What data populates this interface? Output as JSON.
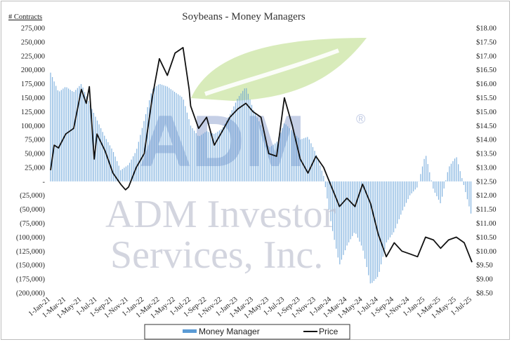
{
  "chart_data": {
    "type": "bar+line",
    "title": "Soybeans - Money Managers",
    "y_left_unit_label": "# Contracts",
    "y_left": {
      "min": -200000,
      "max": 275000,
      "ticks": [
        275000,
        250000,
        225000,
        200000,
        175000,
        150000,
        125000,
        100000,
        75000,
        50000,
        25000,
        0,
        -25000,
        -50000,
        -75000,
        -100000,
        -125000,
        -150000,
        -175000,
        -200000
      ],
      "tick_labels": [
        "275,000",
        "250,000",
        "225,000",
        "200,000",
        "175,000",
        "150,000",
        "125,000",
        "100,000",
        "75,000",
        "50,000",
        "25,000",
        "-",
        "(25,000)",
        "(50,000)",
        "(75,000)",
        "(100,000)",
        "(125,000)",
        "(150,000)",
        "(175,000)",
        "(200,000)"
      ]
    },
    "y_right": {
      "min": 8.5,
      "max": 18.0,
      "ticks": [
        18,
        17.5,
        17,
        16.5,
        16,
        15.5,
        15,
        14.5,
        14,
        13.5,
        13,
        12.5,
        12,
        11.5,
        11,
        10.5,
        10,
        9.5,
        9,
        8.5
      ],
      "tick_labels": [
        "$18.00",
        "$17.50",
        "$17.00",
        "$16.50",
        "$16.00",
        "$15.50",
        "$15.00",
        "$14.50",
        "$14.00",
        "$13.50",
        "$13.00",
        "$12.50",
        "$12.00",
        "$11.50",
        "$11.00",
        "$10.50",
        "$10.00",
        "$9.50",
        "$9.00",
        "$8.50"
      ]
    },
    "x_start": "2021-01-01",
    "x_end": "2025-07-01",
    "x_tick_labels": [
      "1-Jan-21",
      "1-Mar-21",
      "1-May-21",
      "1-Jul-21",
      "1-Sep-21",
      "1-Nov-21",
      "1-Jan-22",
      "1-Mar-22",
      "1-May-22",
      "1-Jul-22",
      "1-Sep-22",
      "1-Nov-22",
      "1-Jan-23",
      "1-Mar-23",
      "1-May-23",
      "1-Jul-23",
      "1-Sep-23",
      "1-Nov-23",
      "1-Jan-24",
      "1-Mar-24",
      "1-May-24",
      "1-Jul-24",
      "1-Sep-24",
      "1-Nov-24",
      "1-Jan-25",
      "1-Mar-25",
      "1-May-25",
      "1-Jul-25"
    ],
    "series": [
      {
        "name": "Money Manager",
        "kind": "bar",
        "axis": "left",
        "color": "#5b9bd5",
        "points": [
          [
            "2021-01-01",
            195000
          ],
          [
            "2021-02-01",
            160000
          ],
          [
            "2021-03-01",
            170000
          ],
          [
            "2021-04-01",
            160000
          ],
          [
            "2021-05-01",
            175000
          ],
          [
            "2021-06-01",
            140000
          ],
          [
            "2021-07-01",
            110000
          ],
          [
            "2021-08-01",
            80000
          ],
          [
            "2021-09-01",
            55000
          ],
          [
            "2021-10-01",
            20000
          ],
          [
            "2021-11-01",
            30000
          ],
          [
            "2021-12-01",
            55000
          ],
          [
            "2022-01-01",
            110000
          ],
          [
            "2022-02-01",
            165000
          ],
          [
            "2022-03-01",
            175000
          ],
          [
            "2022-04-01",
            170000
          ],
          [
            "2022-05-01",
            160000
          ],
          [
            "2022-06-01",
            150000
          ],
          [
            "2022-07-01",
            100000
          ],
          [
            "2022-08-01",
            80000
          ],
          [
            "2022-09-01",
            90000
          ],
          [
            "2022-10-01",
            85000
          ],
          [
            "2022-11-01",
            95000
          ],
          [
            "2022-12-01",
            120000
          ],
          [
            "2023-01-01",
            150000
          ],
          [
            "2023-02-01",
            170000
          ],
          [
            "2023-03-01",
            130000
          ],
          [
            "2023-04-01",
            100000
          ],
          [
            "2023-05-01",
            60000
          ],
          [
            "2023-06-01",
            70000
          ],
          [
            "2023-07-01",
            105000
          ],
          [
            "2023-08-01",
            90000
          ],
          [
            "2023-09-01",
            75000
          ],
          [
            "2023-10-01",
            80000
          ],
          [
            "2023-11-01",
            50000
          ],
          [
            "2023-12-01",
            10000
          ],
          [
            "2024-01-01",
            -80000
          ],
          [
            "2024-02-01",
            -150000
          ],
          [
            "2024-03-01",
            -115000
          ],
          [
            "2024-04-01",
            -90000
          ],
          [
            "2024-05-01",
            -120000
          ],
          [
            "2024-06-01",
            -185000
          ],
          [
            "2024-07-01",
            -170000
          ],
          [
            "2024-08-01",
            -110000
          ],
          [
            "2024-09-01",
            -90000
          ],
          [
            "2024-10-01",
            -55000
          ],
          [
            "2024-11-01",
            -25000
          ],
          [
            "2024-12-01",
            -10000
          ],
          [
            "2025-01-01",
            50000
          ],
          [
            "2025-02-01",
            -15000
          ],
          [
            "2025-03-01",
            -40000
          ],
          [
            "2025-04-01",
            25000
          ],
          [
            "2025-05-01",
            45000
          ],
          [
            "2025-06-01",
            -10000
          ],
          [
            "2025-07-01",
            -65000
          ]
        ]
      },
      {
        "name": "Price",
        "kind": "line",
        "axis": "right",
        "color": "#111111",
        "points": [
          [
            "2021-01-01",
            12.9
          ],
          [
            "2021-01-15",
            13.8
          ],
          [
            "2021-02-01",
            13.7
          ],
          [
            "2021-03-01",
            14.2
          ],
          [
            "2021-04-01",
            14.4
          ],
          [
            "2021-05-01",
            15.8
          ],
          [
            "2021-05-20",
            15.3
          ],
          [
            "2021-06-01",
            15.9
          ],
          [
            "2021-06-20",
            13.3
          ],
          [
            "2021-07-01",
            14.2
          ],
          [
            "2021-08-01",
            13.6
          ],
          [
            "2021-09-01",
            12.8
          ],
          [
            "2021-10-01",
            12.4
          ],
          [
            "2021-10-20",
            12.2
          ],
          [
            "2021-11-01",
            12.3
          ],
          [
            "2021-12-01",
            13.0
          ],
          [
            "2022-01-01",
            13.5
          ],
          [
            "2022-02-01",
            15.5
          ],
          [
            "2022-03-01",
            16.9
          ],
          [
            "2022-04-01",
            16.3
          ],
          [
            "2022-05-01",
            17.1
          ],
          [
            "2022-06-01",
            17.3
          ],
          [
            "2022-06-25",
            15.8
          ],
          [
            "2022-07-01",
            15.2
          ],
          [
            "2022-08-01",
            14.4
          ],
          [
            "2022-09-01",
            14.8
          ],
          [
            "2022-10-01",
            13.8
          ],
          [
            "2022-11-01",
            14.3
          ],
          [
            "2022-12-01",
            14.8
          ],
          [
            "2023-01-01",
            15.1
          ],
          [
            "2023-02-01",
            15.3
          ],
          [
            "2023-03-01",
            15.0
          ],
          [
            "2023-04-01",
            14.8
          ],
          [
            "2023-05-01",
            13.5
          ],
          [
            "2023-06-01",
            13.4
          ],
          [
            "2023-07-01",
            15.5
          ],
          [
            "2023-08-01",
            14.5
          ],
          [
            "2023-09-01",
            13.3
          ],
          [
            "2023-10-01",
            12.8
          ],
          [
            "2023-11-01",
            13.4
          ],
          [
            "2023-12-01",
            13.0
          ],
          [
            "2024-01-01",
            12.3
          ],
          [
            "2024-02-01",
            11.6
          ],
          [
            "2024-03-01",
            11.9
          ],
          [
            "2024-04-01",
            11.6
          ],
          [
            "2024-05-01",
            12.4
          ],
          [
            "2024-06-01",
            11.7
          ],
          [
            "2024-07-01",
            10.6
          ],
          [
            "2024-08-01",
            9.8
          ],
          [
            "2024-09-01",
            10.3
          ],
          [
            "2024-10-01",
            10.0
          ],
          [
            "2024-11-01",
            9.9
          ],
          [
            "2024-12-01",
            9.8
          ],
          [
            "2025-01-01",
            10.5
          ],
          [
            "2025-02-01",
            10.4
          ],
          [
            "2025-03-01",
            10.1
          ],
          [
            "2025-04-01",
            10.4
          ],
          [
            "2025-05-01",
            10.5
          ],
          [
            "2025-06-01",
            10.3
          ],
          [
            "2025-07-01",
            9.6
          ]
        ]
      }
    ],
    "legend_position": "bottom",
    "grid": false
  },
  "watermark": {
    "logo_letters": "ADM",
    "registered_mark": "®",
    "line1": "ADM Investor",
    "line2": "Services, Inc.",
    "leaf_color": "#c7e39c",
    "letter_color": "#7f94c8",
    "text_color": "#b8bccb"
  }
}
